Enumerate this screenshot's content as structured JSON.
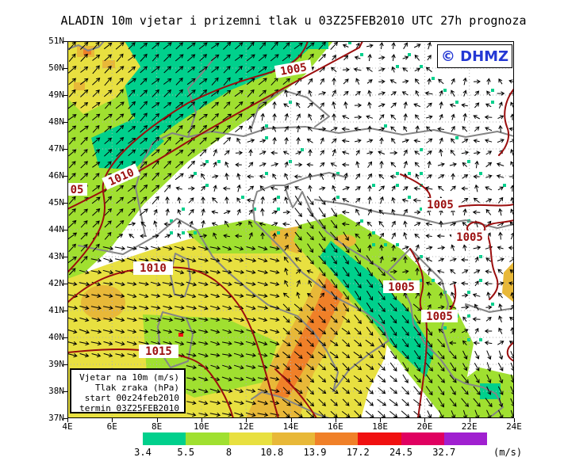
{
  "title": "ALADIN 10m vjetar i prizemni tlak u 03Z25FEB2010 UTC 27h prognoza",
  "logo": {
    "text": "© DHMZ",
    "color": "#2438d4"
  },
  "info_box": {
    "lines": [
      "Vjetar na 10m (m/s)",
      "Tlak zraka (hPa)",
      "start 00z24feb2010",
      "termin 03Z25FEB2010"
    ]
  },
  "axes": {
    "lat_labels": [
      "51N",
      "50N",
      "49N",
      "48N",
      "47N",
      "46N",
      "45N",
      "44N",
      "43N",
      "42N",
      "41N",
      "40N",
      "39N",
      "38N",
      "37N"
    ],
    "lon_labels": [
      "4E",
      "6E",
      "8E",
      "10E",
      "12E",
      "14E",
      "16E",
      "18E",
      "20E",
      "22E",
      "24E"
    ]
  },
  "colorbar": {
    "values": [
      "3.4",
      "5.5",
      "8",
      "10.8",
      "13.9",
      "17.2",
      "24.5",
      "32.7"
    ],
    "unit": "(m/s)",
    "colors": [
      "#00d08c",
      "#a0e030",
      "#e8e040",
      "#e8b838",
      "#f08028",
      "#f01010",
      "#e00060",
      "#a020d0"
    ]
  },
  "isobars": {
    "color": "#9b0e0e",
    "values": [
      "1005",
      "1010",
      "1015"
    ],
    "labels": [
      {
        "text": "1005"
      },
      {
        "text": "05"
      },
      {
        "text": "1010"
      },
      {
        "text": "1010"
      },
      {
        "text": "1015"
      },
      {
        "text": "1005"
      },
      {
        "text": "1005"
      },
      {
        "text": "1005"
      },
      {
        "text": "1005"
      }
    ]
  },
  "wind_zones": [
    {
      "name": "nw-band",
      "angle": 50,
      "spread": 30,
      "length": 13
    },
    {
      "name": "adriatic-bora",
      "angle": -48,
      "spread": 22,
      "length": 14
    },
    {
      "name": "west-med",
      "angle": -10,
      "spread": 18,
      "length": 13
    },
    {
      "name": "south-center",
      "angle": -35,
      "spread": 24,
      "length": 13
    },
    {
      "name": "south-east",
      "angle": -60,
      "spread": 26,
      "length": 12
    },
    {
      "name": "calm-variable",
      "angle": 0,
      "spread": 360,
      "length": 9
    }
  ]
}
